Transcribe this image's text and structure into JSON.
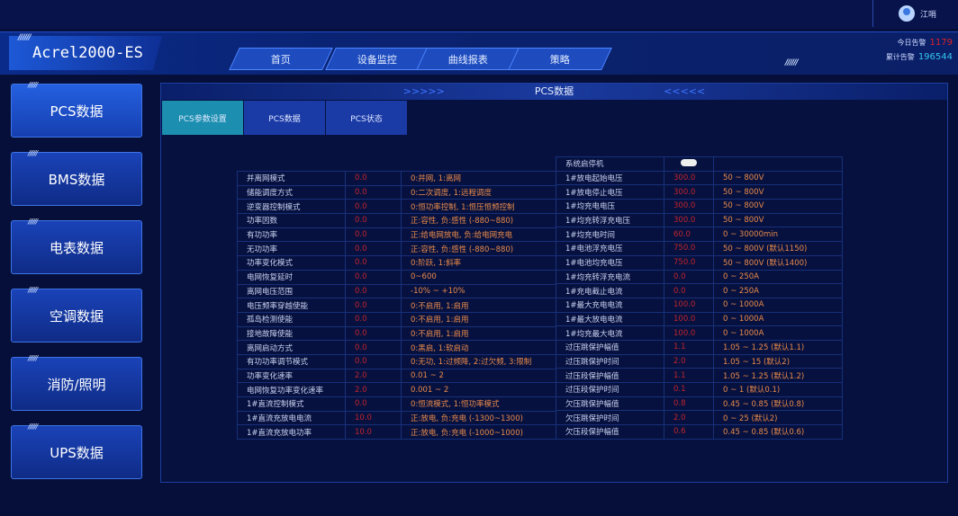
{
  "user": {
    "name": "江哨"
  },
  "app": {
    "title": "Acrel2000-ES"
  },
  "nav": [
    {
      "label": "首页"
    },
    {
      "label": "设备监控"
    },
    {
      "label": "曲线报表"
    },
    {
      "label": "策略"
    }
  ],
  "alarms": {
    "today_label": "今日告警",
    "today_value": "1179",
    "total_label": "累计告警",
    "total_value": "196544",
    "today_color": "#e0202a",
    "total_color": "#35c6f0"
  },
  "sidebar": [
    {
      "label": "PCS数据"
    },
    {
      "label": "BMS数据"
    },
    {
      "label": "电表数据"
    },
    {
      "label": "空调数据"
    },
    {
      "label": "消防/照明"
    },
    {
      "label": "UPS数据"
    }
  ],
  "panel": {
    "title": "PCS数据",
    "tabs": [
      {
        "label": "PCS参数设置"
      },
      {
        "label": "PCS数据"
      },
      {
        "label": "PCS状态"
      }
    ]
  },
  "left_rows": [
    [
      "并离网模式",
      "0.0",
      "0:并网, 1:离网"
    ],
    [
      "储能调度方式",
      "0.0",
      "0:二次调度, 1:远程调度"
    ],
    [
      "逆变器控制模式",
      "0.0",
      "0:恒功率控制, 1:恒压恒频控制"
    ],
    [
      "功率因数",
      "0.0",
      "正:容性, 负:感性 (-880~880)"
    ],
    [
      "有功功率",
      "0.0",
      "正:给电网放电, 负:给电网充电"
    ],
    [
      "无功功率",
      "0.0",
      "正:容性, 负:感性 (-880~880)"
    ],
    [
      "功率变化模式",
      "0.0",
      "0:阶跃, 1:斜率"
    ],
    [
      "电网恢复延时",
      "0.0",
      "0~600"
    ],
    [
      "离网电压范围",
      "0.0",
      "-10% ~ +10%"
    ],
    [
      "电压频率穿越使能",
      "0.0",
      "0:不启用, 1:启用"
    ],
    [
      "孤岛检测使能",
      "0.0",
      "0:不启用, 1:启用"
    ],
    [
      "接地故障使能",
      "0.0",
      "0:不启用, 1:启用"
    ],
    [
      "离网启动方式",
      "0.0",
      "0:黑启, 1:软启动"
    ],
    [
      "有功功率调节模式",
      "0.0",
      "0:无功, 1:过频降, 2:过欠频, 3:限制"
    ],
    [
      "功率变化速率",
      "2.0",
      "0.01 ~ 2"
    ],
    [
      "电网恢复功率变化速率",
      "2.0",
      "0.001 ~ 2"
    ],
    [
      "1#直流控制模式",
      "0.0",
      "0:恒流模式, 1:恒功率模式"
    ],
    [
      "1#直流充放电电流",
      "10.0",
      "正:放电, 负:充电 (-1300~1300)"
    ],
    [
      "1#直流充放电功率",
      "10.0",
      "正:放电, 负:充电 (-1000~1000)"
    ]
  ],
  "right_header": {
    "label": "系统启停机",
    "toggle_on": true
  },
  "right_rows": [
    [
      "1#放电起始电压",
      "300.0",
      "50 ~ 800V"
    ],
    [
      "1#放电停止电压",
      "300.0",
      "50 ~ 800V"
    ],
    [
      "1#均充电电压",
      "300.0",
      "50 ~ 800V"
    ],
    [
      "1#均充转浮充电压",
      "300.0",
      "50 ~ 800V"
    ],
    [
      "1#均充电时间",
      "60.0",
      "0 ~ 30000min"
    ],
    [
      "1#电池浮充电压",
      "750.0",
      "50 ~ 800V (默认1150)"
    ],
    [
      "1#电池均充电压",
      "750.0",
      "50 ~ 800V (默认1400)"
    ],
    [
      "1#均充转浮充电流",
      "0.0",
      "0 ~ 250A"
    ],
    [
      "1#充电截止电流",
      "0.0",
      "0 ~ 250A"
    ],
    [
      "1#最大充电电流",
      "100.0",
      "0 ~ 1000A"
    ],
    [
      "1#最大放电电流",
      "100.0",
      "0 ~ 1000A"
    ],
    [
      "1#均充最大电流",
      "100.0",
      "0 ~ 1000A"
    ],
    [
      "过压跳保护幅值",
      "1.1",
      "1.05 ~ 1.25 (默认1.1)"
    ],
    [
      "过压跳保护时间",
      "2.0",
      "1.05 ~ 15 (默认2)"
    ],
    [
      "过压段保护幅值",
      "1.1",
      "1.05 ~ 1.25 (默认1.2)"
    ],
    [
      "过压段保护时间",
      "0.1",
      "0 ~ 1 (默认0.1)"
    ],
    [
      "欠压跳保护幅值",
      "0.8",
      "0.45 ~ 0.85 (默认0.8)"
    ],
    [
      "欠压跳保护时间",
      "2.0",
      "0 ~ 25 (默认2)"
    ],
    [
      "欠压段保护幅值",
      "0.6",
      "0.45 ~ 0.85 (默认0.6)"
    ]
  ]
}
